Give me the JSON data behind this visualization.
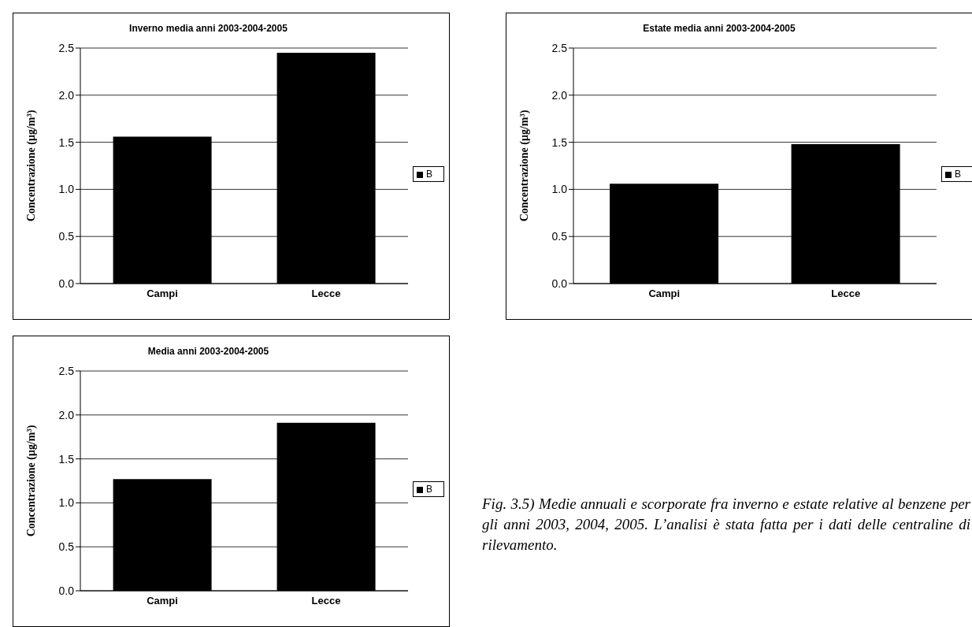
{
  "chart_data": [
    {
      "type": "bar",
      "title": "Inverno media anni 2003-2004-2005",
      "ylabel": "Concentrazione (μg/m³)",
      "categories": [
        "Campi",
        "Lecce"
      ],
      "series": [
        {
          "name": "B",
          "color": "#000000",
          "values": [
            1.56,
            2.45
          ]
        }
      ],
      "ylim": [
        0,
        2.5
      ],
      "yticks": [
        {
          "value": 0,
          "label": "0.0"
        },
        {
          "value": 0.5,
          "label": "0.5"
        },
        {
          "value": 1,
          "label": "1.0"
        },
        {
          "value": 1.5,
          "label": "1.5"
        },
        {
          "value": 2,
          "label": "2.0"
        },
        {
          "value": 2.5,
          "label": "2.5"
        }
      ],
      "grid": "y",
      "legend": "right"
    },
    {
      "type": "bar",
      "title": "Estate media anni 2003-2004-2005",
      "ylabel": "Concentrazione (μg/m³)",
      "categories": [
        "Campi",
        "Lecce"
      ],
      "series": [
        {
          "name": "B",
          "color": "#000000",
          "values": [
            1.06,
            1.48
          ]
        }
      ],
      "ylim": [
        0,
        2.5
      ],
      "yticks": [
        {
          "value": 0,
          "label": "0.0"
        },
        {
          "value": 0.5,
          "label": "0.5"
        },
        {
          "value": 1,
          "label": "1.0"
        },
        {
          "value": 1.5,
          "label": "1.5"
        },
        {
          "value": 2,
          "label": "2.0"
        },
        {
          "value": 2.5,
          "label": "2.5"
        }
      ],
      "grid": "y",
      "legend": "right"
    },
    {
      "type": "bar",
      "title": "Media anni 2003-2004-2005",
      "ylabel": "Concentrazione (μg/m³)",
      "categories": [
        "Campi",
        "Lecce"
      ],
      "series": [
        {
          "name": "B",
          "color": "#000000",
          "values": [
            1.27,
            1.91
          ]
        }
      ],
      "ylim": [
        0,
        2.5
      ],
      "yticks": [
        {
          "value": 0,
          "label": "0.0"
        },
        {
          "value": 0.5,
          "label": "0.5"
        },
        {
          "value": 1,
          "label": "1.0"
        },
        {
          "value": 1.5,
          "label": "1.5"
        },
        {
          "value": 2,
          "label": "2.0"
        },
        {
          "value": 2.5,
          "label": "2.5"
        }
      ],
      "grid": "y",
      "legend": "right",
      "annotations": [
        "Fig. 3.5) Medie annuali e scorporate fra inverno e estate relative al benzene per gli anni 2003, 2004, 2005. L’analisi è stata fatta per i dati delle centraline di rilevamento."
      ]
    }
  ]
}
